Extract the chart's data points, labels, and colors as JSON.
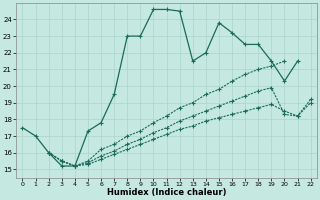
{
  "xlabel": "Humidex (Indice chaleur)",
  "bg_color": "#c5e8e0",
  "line_color": "#1a6b5a",
  "grid_color": "#aad4ca",
  "xlim": [
    -0.5,
    22.5
  ],
  "ylim": [
    14.5,
    25.0
  ],
  "yticks": [
    15,
    16,
    17,
    18,
    19,
    20,
    21,
    22,
    23,
    24
  ],
  "xticks": [
    0,
    1,
    2,
    3,
    4,
    5,
    6,
    7,
    8,
    9,
    10,
    11,
    12,
    13,
    14,
    15,
    16,
    17,
    18,
    19,
    20,
    21,
    22
  ],
  "line1_x": [
    0,
    1,
    2,
    3,
    4,
    5,
    6,
    7,
    8,
    9,
    10,
    11,
    12,
    13,
    14,
    15,
    16,
    17,
    18,
    19,
    20,
    21
  ],
  "line1_y": [
    17.5,
    17.0,
    16.0,
    15.2,
    15.2,
    17.3,
    17.8,
    19.5,
    23.0,
    23.0,
    24.6,
    24.6,
    24.5,
    21.5,
    22.0,
    23.8,
    23.2,
    22.5,
    22.5,
    21.5,
    20.3,
    21.5
  ],
  "line2_x": [
    2,
    3,
    4,
    5,
    6,
    7,
    8,
    9,
    10,
    11,
    12,
    13,
    14,
    15,
    16,
    17,
    18,
    19,
    20
  ],
  "line2_y": [
    16.0,
    15.5,
    15.2,
    15.5,
    16.2,
    16.5,
    17.0,
    17.3,
    17.8,
    18.2,
    18.7,
    19.0,
    19.5,
    19.8,
    20.3,
    20.7,
    21.0,
    21.2,
    21.5
  ],
  "line3_x": [
    2,
    3,
    4,
    5,
    6,
    7,
    8,
    9,
    10,
    11,
    12,
    13,
    14,
    15,
    16,
    17,
    18,
    19,
    20,
    21,
    22
  ],
  "line3_y": [
    16.0,
    15.5,
    15.2,
    15.4,
    15.8,
    16.1,
    16.5,
    16.8,
    17.2,
    17.5,
    17.9,
    18.2,
    18.5,
    18.8,
    19.1,
    19.4,
    19.7,
    19.9,
    18.3,
    18.2,
    19.2
  ],
  "line4_x": [
    2,
    3,
    4,
    5,
    6,
    7,
    8,
    9,
    10,
    11,
    12,
    13,
    14,
    15,
    16,
    17,
    18,
    19,
    20,
    21,
    22
  ],
  "line4_y": [
    16.0,
    15.5,
    15.2,
    15.3,
    15.6,
    15.9,
    16.2,
    16.5,
    16.8,
    17.1,
    17.4,
    17.6,
    17.9,
    18.1,
    18.3,
    18.5,
    18.7,
    18.9,
    18.5,
    18.2,
    19.0
  ]
}
